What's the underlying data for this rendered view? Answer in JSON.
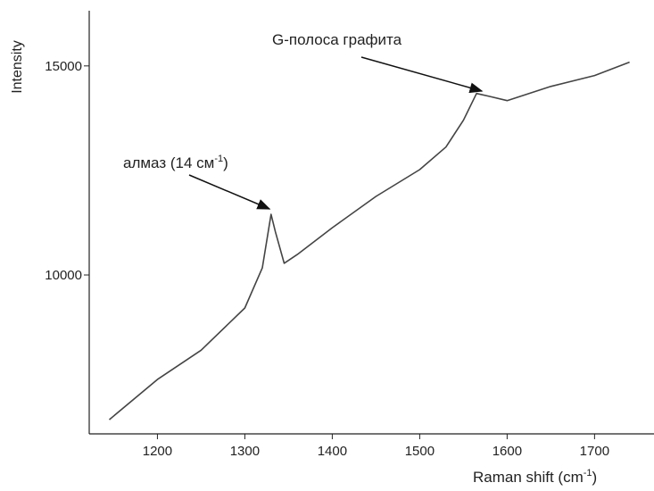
{
  "chart_data": {
    "type": "line",
    "y_label": "Intensity",
    "x_label": {
      "text": "Raman shift (cm",
      "sup": "-1",
      "tail": ")"
    },
    "annotations": [
      {
        "text": "G-полоса графита"
      },
      {
        "text": "алмаз (14 см",
        "sup": "-1",
        "tail": ")"
      }
    ],
    "x": [
      1145,
      1200,
      1250,
      1300,
      1320,
      1330,
      1335,
      1345,
      1360,
      1400,
      1450,
      1500,
      1530,
      1550,
      1565,
      1580,
      1600,
      1625,
      1650,
      1700,
      1740
    ],
    "values": [
      6540,
      7500,
      8200,
      9210,
      10170,
      11450,
      11030,
      10280,
      10490,
      11130,
      11880,
      12520,
      13060,
      13700,
      14340,
      14270,
      14170,
      14340,
      14510,
      14770,
      15090
    ],
    "color": "#444444",
    "xlim": [
      1122,
      1768
    ],
    "xticks": [
      1200,
      1300,
      1400,
      1500,
      1600,
      1700
    ],
    "ylim": [
      6200,
      16320
    ],
    "yticks": [
      10000,
      15000
    ]
  }
}
